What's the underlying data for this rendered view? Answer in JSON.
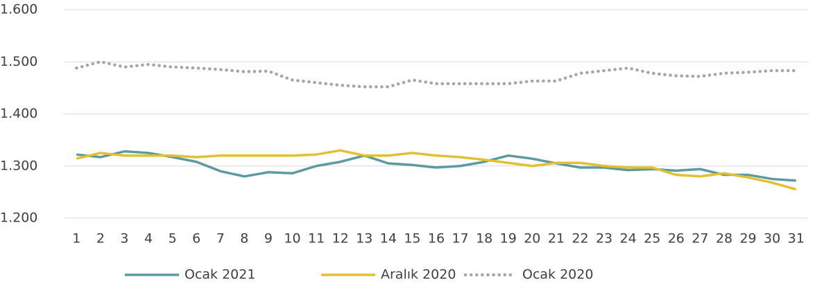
{
  "chart_data": {
    "type": "line",
    "categories": [
      "1",
      "2",
      "3",
      "4",
      "5",
      "6",
      "7",
      "8",
      "9",
      "10",
      "11",
      "12",
      "13",
      "14",
      "15",
      "16",
      "17",
      "18",
      "19",
      "20",
      "21",
      "22",
      "23",
      "24",
      "25",
      "26",
      "27",
      "28",
      "29",
      "30",
      "31"
    ],
    "series": [
      {
        "name": "Ocak 2021",
        "color": "#5b9aa0",
        "dashed": false,
        "values": [
          1322,
          1317,
          1328,
          1325,
          1317,
          1308,
          1290,
          1280,
          1288,
          1286,
          1300,
          1308,
          1320,
          1305,
          1302,
          1297,
          1300,
          1308,
          1320,
          1314,
          1305,
          1297,
          1297,
          1292,
          1294,
          1291,
          1294,
          1283,
          1283,
          1275,
          1272
        ]
      },
      {
        "name": "Aralık 2020",
        "color": "#e2c032",
        "dashed": false,
        "values": [
          1314,
          1325,
          1320,
          1320,
          1320,
          1317,
          1320,
          1320,
          1320,
          1320,
          1322,
          1330,
          1320,
          1320,
          1325,
          1320,
          1317,
          1312,
          1306,
          1300,
          1306,
          1306,
          1300,
          1297,
          1297,
          1283,
          1280,
          1286,
          1278,
          1268,
          1255
        ]
      },
      {
        "name": "Ocak 2020",
        "color": "#a5a5a5",
        "dashed": true,
        "values": [
          1488,
          1500,
          1490,
          1495,
          1490,
          1488,
          1485,
          1481,
          1482,
          1465,
          1460,
          1455,
          1452,
          1452,
          1465,
          1458,
          1458,
          1458,
          1458,
          1463,
          1463,
          1478,
          1483,
          1488,
          1478,
          1473,
          1472,
          1478,
          1480,
          1483,
          1483
        ]
      }
    ],
    "ylim": [
      1200,
      1600
    ],
    "yticks": [
      {
        "value": 1200,
        "label": "1.200"
      },
      {
        "value": 1300,
        "label": "1.300"
      },
      {
        "value": 1400,
        "label": "1.400"
      },
      {
        "value": 1500,
        "label": "1.500"
      },
      {
        "value": 1600,
        "label": "1.600"
      }
    ],
    "grid": true,
    "legend": "bottom"
  }
}
